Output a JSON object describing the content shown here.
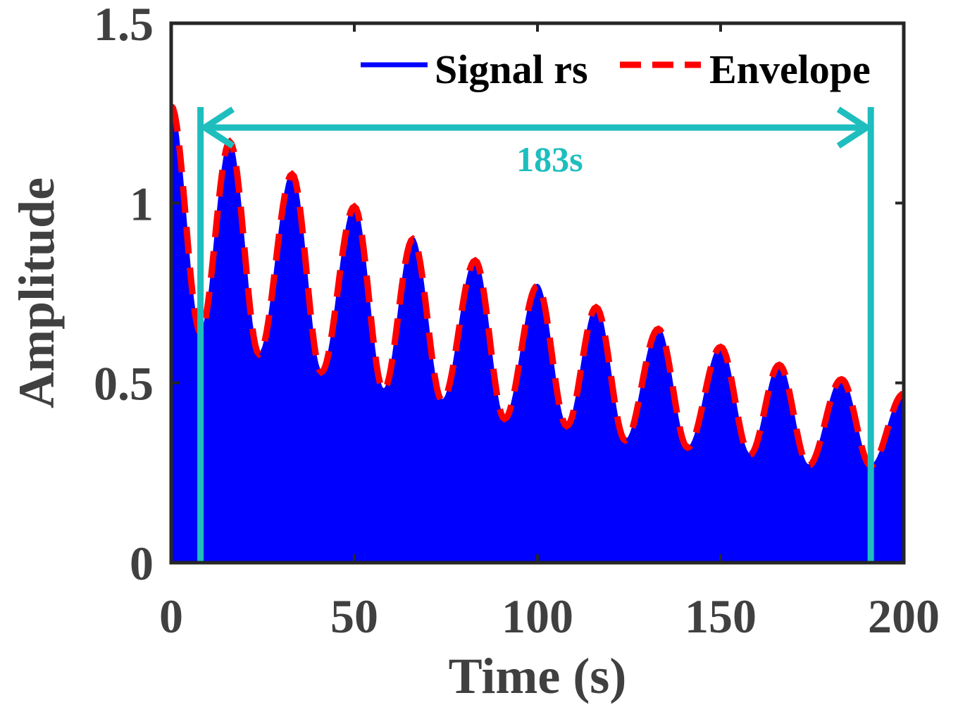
{
  "chart_data": {
    "type": "area",
    "title": "",
    "xlabel": "Time (s)",
    "ylabel": "Amplitude",
    "xlim": [
      0,
      200
    ],
    "ylim": [
      0,
      1.5
    ],
    "xticks": [
      0,
      50,
      100,
      150,
      200
    ],
    "xtick_labels": [
      "0",
      "50",
      "100",
      "150",
      "200"
    ],
    "yticks": [
      0,
      0.5,
      1,
      1.5
    ],
    "ytick_labels": [
      "0",
      "0.5",
      "1",
      "1.5"
    ],
    "grid": false,
    "legend_position": "top-right",
    "series": [
      {
        "name": "Signal rs",
        "style": "filled oscillation (dense)",
        "color": "#0000ff",
        "peaks": [
          {
            "x": 0,
            "y": 1.27
          },
          {
            "x": 16,
            "y": 1.17
          },
          {
            "x": 33,
            "y": 1.08
          },
          {
            "x": 50,
            "y": 0.99
          },
          {
            "x": 66,
            "y": 0.9
          },
          {
            "x": 83,
            "y": 0.84
          },
          {
            "x": 100,
            "y": 0.77
          },
          {
            "x": 116,
            "y": 0.71
          },
          {
            "x": 133,
            "y": 0.65
          },
          {
            "x": 150,
            "y": 0.6
          },
          {
            "x": 166,
            "y": 0.55
          },
          {
            "x": 183,
            "y": 0.51
          },
          {
            "x": 200,
            "y": 0.47
          }
        ],
        "troughs": [
          {
            "x": 8,
            "y": 0.64
          },
          {
            "x": 24,
            "y": 0.58
          },
          {
            "x": 41,
            "y": 0.53
          },
          {
            "x": 58,
            "y": 0.48
          },
          {
            "x": 74,
            "y": 0.45
          },
          {
            "x": 91,
            "y": 0.4
          },
          {
            "x": 108,
            "y": 0.38
          },
          {
            "x": 124,
            "y": 0.34
          },
          {
            "x": 141,
            "y": 0.32
          },
          {
            "x": 158,
            "y": 0.3
          },
          {
            "x": 174,
            "y": 0.27
          },
          {
            "x": 191,
            "y": 0.27
          }
        ]
      },
      {
        "name": "Envelope",
        "style": "dashed line",
        "color": "#ff0000"
      }
    ],
    "annotations": [
      {
        "type": "double-arrow",
        "label": "183s",
        "x_start": 8,
        "x_end": 191,
        "y": 1.21,
        "color": "#1ebebe"
      }
    ],
    "vertical_markers": [
      8,
      191
    ]
  }
}
